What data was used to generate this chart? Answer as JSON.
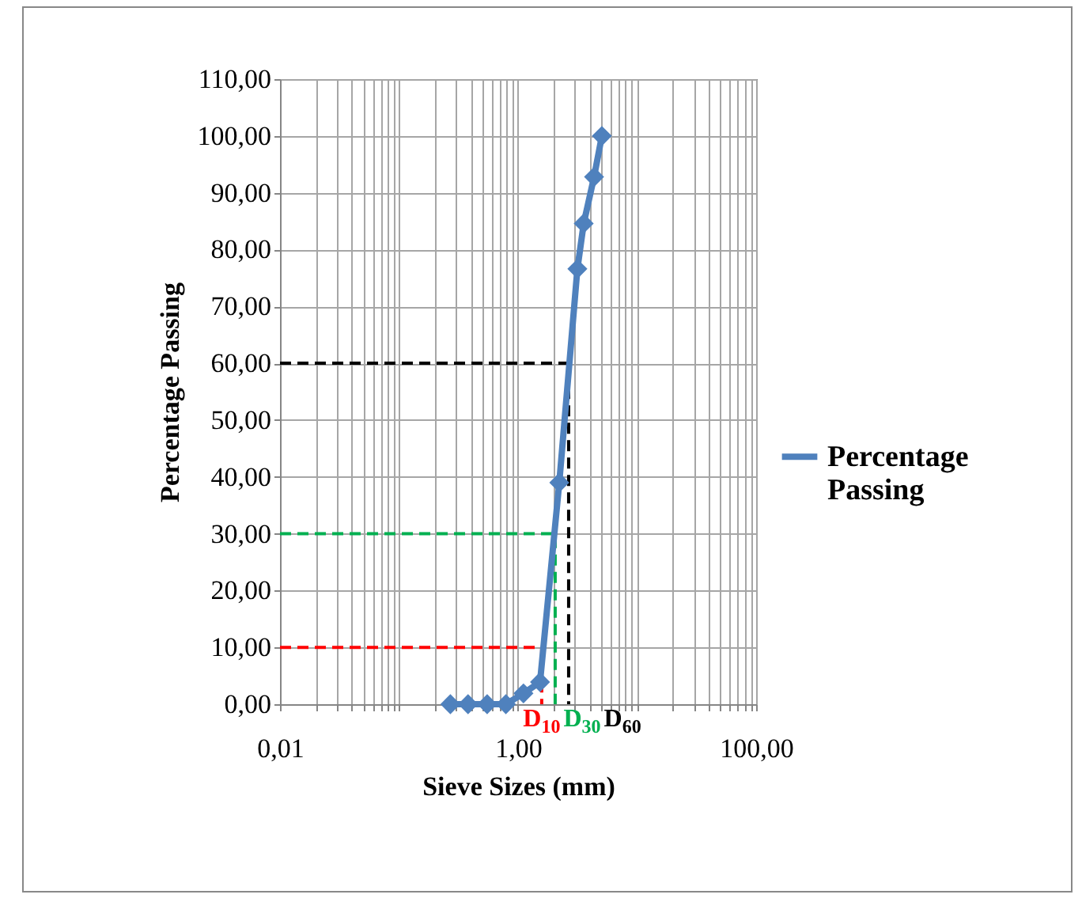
{
  "chart_data": {
    "type": "line",
    "xlabel": "Sieve Sizes (mm)",
    "ylabel": "Percentage Passing",
    "log": "x",
    "grid": true,
    "legend": "right",
    "xlim": [
      0.01,
      100
    ],
    "ylim": [
      0,
      110
    ],
    "xticks": [
      {
        "value": 0.01,
        "label": "0,01"
      },
      {
        "value": 0.02,
        "label": null
      },
      {
        "value": 0.03,
        "label": null
      },
      {
        "value": 0.04,
        "label": null
      },
      {
        "value": 0.05,
        "label": null
      },
      {
        "value": 0.06,
        "label": null
      },
      {
        "value": 0.07,
        "label": null
      },
      {
        "value": 0.08,
        "label": null
      },
      {
        "value": 0.09,
        "label": null
      },
      {
        "value": 0.1,
        "label": null
      },
      {
        "value": 0.2,
        "label": null
      },
      {
        "value": 0.3,
        "label": null
      },
      {
        "value": 0.4,
        "label": null
      },
      {
        "value": 0.5,
        "label": null
      },
      {
        "value": 0.6,
        "label": null
      },
      {
        "value": 0.7,
        "label": null
      },
      {
        "value": 0.8,
        "label": null
      },
      {
        "value": 0.9,
        "label": null
      },
      {
        "value": 1,
        "label": "1,00"
      },
      {
        "value": 2,
        "label": null
      },
      {
        "value": 3,
        "label": null
      },
      {
        "value": 4,
        "label": null
      },
      {
        "value": 5,
        "label": null
      },
      {
        "value": 6,
        "label": null
      },
      {
        "value": 7,
        "label": null
      },
      {
        "value": 8,
        "label": null
      },
      {
        "value": 9,
        "label": null
      },
      {
        "value": 10,
        "label": null
      },
      {
        "value": 20,
        "label": null
      },
      {
        "value": 30,
        "label": null
      },
      {
        "value": 40,
        "label": null
      },
      {
        "value": 50,
        "label": null
      },
      {
        "value": 60,
        "label": null
      },
      {
        "value": 70,
        "label": null
      },
      {
        "value": 80,
        "label": null
      },
      {
        "value": 90,
        "label": null
      },
      {
        "value": 100,
        "label": "100,00"
      }
    ],
    "yticks": [
      {
        "value": 0,
        "label": "0,00"
      },
      {
        "value": 10,
        "label": "10,00"
      },
      {
        "value": 20,
        "label": "20,00"
      },
      {
        "value": 30,
        "label": "30,00"
      },
      {
        "value": 40,
        "label": "40,00"
      },
      {
        "value": 50,
        "label": "50,00"
      },
      {
        "value": 60,
        "label": "60,00"
      },
      {
        "value": 70,
        "label": "70,00"
      },
      {
        "value": 80,
        "label": "80,00"
      },
      {
        "value": 90,
        "label": "90,00"
      },
      {
        "value": 100,
        "label": "100,00"
      },
      {
        "value": 110,
        "label": "110,00"
      }
    ],
    "series": [
      {
        "name": "Percentage Passing",
        "type": "line",
        "marker": "diamond",
        "line_style": "solid",
        "color": "#4f81bd",
        "x": [
          0.27,
          0.38,
          0.55,
          0.79,
          1.11,
          1.53,
          2.22,
          3.15,
          3.56,
          4.35,
          5.06
        ],
        "values": [
          0,
          0,
          0,
          0,
          1.9,
          3.9,
          39,
          76.6,
          84.6,
          92.8,
          100
        ]
      },
      {
        "type": "line",
        "marker": "none",
        "line_style": "dashed",
        "color": "#ff0000",
        "x": [
          0.01,
          1.58,
          1.58
        ],
        "values": [
          10,
          10,
          0
        ]
      },
      {
        "type": "line",
        "marker": "none",
        "line_style": "dashed",
        "color": "#00b050",
        "x": [
          0.01,
          2.05,
          2.05
        ],
        "values": [
          30,
          30,
          0
        ]
      },
      {
        "type": "line",
        "marker": "none",
        "line_style": "dashed",
        "color": "#000000",
        "x": [
          0.01,
          2.66,
          2.66
        ],
        "values": [
          60,
          60,
          0
        ]
      }
    ],
    "annotations": [
      {
        "text": "D$_{10}$",
        "x": 1.58,
        "y": 0
      },
      {
        "text": "D$_{30}$",
        "x": 2.05,
        "y": 0
      },
      {
        "text": "D$_{60}$",
        "x": 2.66,
        "y": 0
      }
    ]
  }
}
